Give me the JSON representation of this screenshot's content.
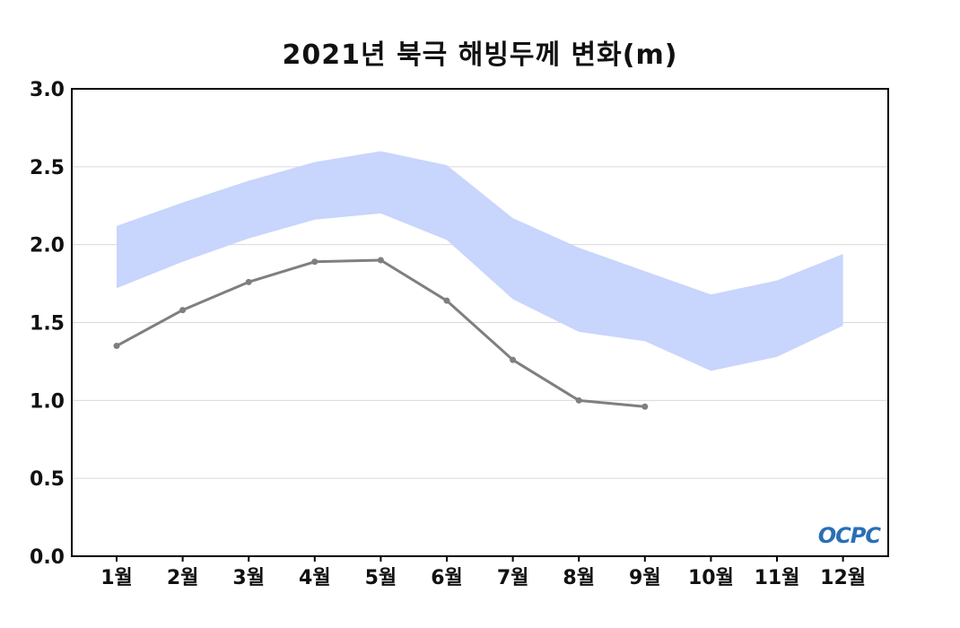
{
  "chart_data": {
    "type": "line",
    "title": "2021년 북극 해빙두께 변화(m)",
    "xlabel": "",
    "ylabel": "",
    "categories": [
      "1월",
      "2월",
      "3월",
      "4월",
      "5월",
      "6월",
      "7월",
      "8월",
      "9월",
      "10월",
      "11월",
      "12월"
    ],
    "ylim": [
      0,
      3.0
    ],
    "yticks": [
      "0.0",
      "0.5",
      "1.0",
      "1.5",
      "2.0",
      "2.5",
      "3.0"
    ],
    "grid": true,
    "series": [
      {
        "values": [
          1.35,
          1.58,
          1.76,
          1.89,
          1.9,
          1.64,
          1.26,
          1.0,
          0.96,
          null,
          null,
          null
        ],
        "color": "#7f7f7f"
      }
    ],
    "band": {
      "lower": [
        1.72,
        1.89,
        2.04,
        2.16,
        2.2,
        2.03,
        1.65,
        1.44,
        1.38,
        1.19,
        1.28,
        1.48
      ],
      "upper": [
        2.12,
        2.27,
        2.41,
        2.53,
        2.6,
        2.51,
        2.17,
        1.98,
        1.83,
        1.68,
        1.77,
        1.94
      ],
      "color": "#c8d5fc"
    }
  },
  "logo": {
    "text": "OCPC",
    "color": "#2a6fb5"
  }
}
